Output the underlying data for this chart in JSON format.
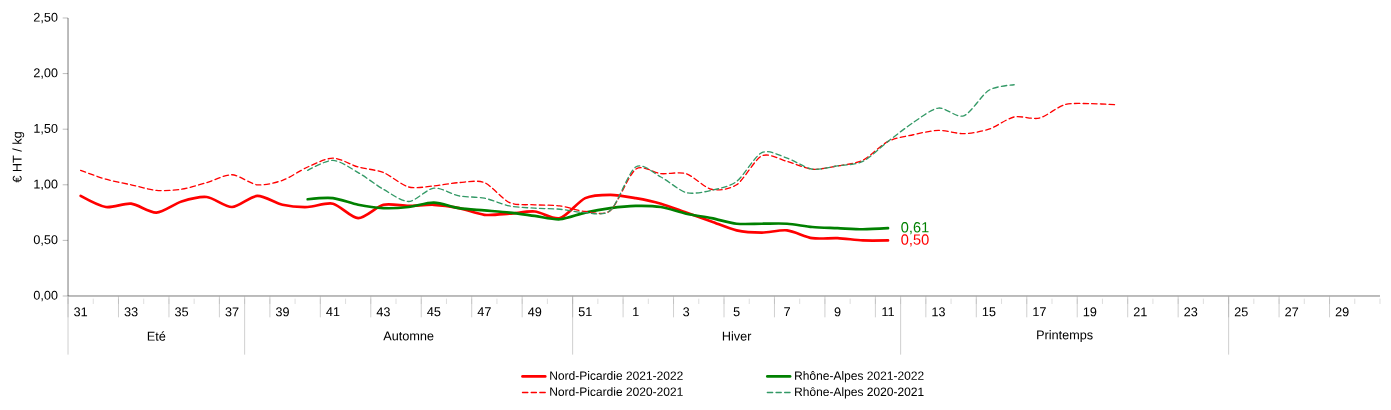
{
  "chart_data": {
    "type": "line",
    "ylabel": "€ HT / kg",
    "categories": [
      "31",
      null,
      "33",
      null,
      "35",
      null,
      "37",
      null,
      "39",
      null,
      "41",
      null,
      "43",
      null,
      "45",
      null,
      "47",
      null,
      "49",
      null,
      "51",
      null,
      "1",
      null,
      "3",
      null,
      "5",
      null,
      "7",
      null,
      "9",
      null,
      "11",
      null,
      "13",
      null,
      "15",
      null,
      "17",
      null,
      "19",
      null,
      "21",
      null,
      "23",
      null,
      "25",
      null,
      "27",
      null,
      "29",
      null
    ],
    "ylim": [
      0,
      2.5
    ],
    "yticks": [
      {
        "value": 0,
        "label": "0,00"
      },
      {
        "value": 0.5,
        "label": "0,50"
      },
      {
        "value": 1,
        "label": "1,00"
      },
      {
        "value": 1.5,
        "label": "1,50"
      },
      {
        "value": 2,
        "label": "2,00"
      },
      {
        "value": 2.5,
        "label": "2,50"
      }
    ],
    "annotations": [
      "Eté",
      "Automne",
      "Hiver",
      "Printemps"
    ],
    "legend": "bottom",
    "series": [
      {
        "name": "Nord-Picardie 2021-2022",
        "color": "#ff0000",
        "line_style": "solid",
        "values": [
          0.9,
          0.8,
          0.83,
          0.75,
          0.85,
          0.89,
          0.8,
          0.9,
          0.82,
          0.8,
          0.83,
          0.7,
          0.82,
          0.81,
          0.82,
          0.79,
          0.73,
          0.74,
          0.76,
          0.7,
          0.88,
          0.91,
          0.88,
          0.83,
          0.75,
          0.67,
          0.59,
          0.57,
          0.59,
          0.52,
          0.52,
          0.5,
          0.5,
          null,
          null,
          null,
          null,
          null,
          null,
          null,
          null,
          null,
          null,
          null,
          null,
          null,
          null,
          null,
          null,
          null,
          null,
          null
        ],
        "value_labels": [
          null,
          null,
          null,
          null,
          null,
          null,
          null,
          null,
          null,
          null,
          null,
          null,
          null,
          null,
          null,
          null,
          null,
          null,
          null,
          null,
          null,
          null,
          null,
          null,
          null,
          null,
          null,
          null,
          null,
          null,
          null,
          null,
          "0,50",
          null,
          null,
          null,
          null,
          null,
          null,
          null,
          null,
          null,
          null,
          null,
          null,
          null,
          null,
          null,
          null,
          null,
          null,
          null
        ]
      },
      {
        "name": "Rhône-Alpes 2021-2022",
        "color": "#008000",
        "line_style": "solid",
        "values": [
          null,
          null,
          null,
          null,
          null,
          null,
          null,
          null,
          null,
          0.87,
          0.88,
          0.82,
          0.79,
          0.8,
          0.84,
          0.79,
          0.77,
          0.75,
          0.72,
          0.69,
          0.75,
          0.79,
          0.81,
          0.8,
          0.74,
          0.7,
          0.65,
          0.65,
          0.65,
          0.62,
          0.61,
          0.6,
          0.61,
          null,
          null,
          null,
          null,
          null,
          null,
          null,
          null,
          null,
          null,
          null,
          null,
          null,
          null,
          null,
          null,
          null,
          null,
          null
        ],
        "value_labels": [
          null,
          null,
          null,
          null,
          null,
          null,
          null,
          null,
          null,
          null,
          null,
          null,
          null,
          null,
          null,
          null,
          null,
          null,
          null,
          null,
          null,
          null,
          null,
          null,
          null,
          null,
          null,
          null,
          null,
          null,
          null,
          null,
          "0,61",
          null,
          null,
          null,
          null,
          null,
          null,
          null,
          null,
          null,
          null,
          null,
          null,
          null,
          null,
          null,
          null,
          null,
          null,
          null
        ]
      },
      {
        "name": "Nord-Picardie 2020-2021",
        "color": "#ff0000",
        "line_style": "dashed",
        "values": [
          1.13,
          1.05,
          1.0,
          0.95,
          0.96,
          1.02,
          1.09,
          1.0,
          1.04,
          1.16,
          1.24,
          1.16,
          1.11,
          0.98,
          0.99,
          1.02,
          1.02,
          0.84,
          0.82,
          0.81,
          0.76,
          0.77,
          1.14,
          1.1,
          1.1,
          0.96,
          1.0,
          1.26,
          1.21,
          1.14,
          1.17,
          1.22,
          1.39,
          1.45,
          1.49,
          1.46,
          1.5,
          1.61,
          1.6,
          1.72,
          1.73,
          1.72,
          null,
          null,
          null,
          null,
          null,
          null,
          null,
          null,
          null,
          null
        ]
      },
      {
        "name": "Rhône-Alpes 2020-2021",
        "color": "#339966",
        "line_style": "dashed",
        "values": [
          null,
          null,
          null,
          null,
          null,
          null,
          null,
          null,
          null,
          1.13,
          1.22,
          1.11,
          0.96,
          0.85,
          0.97,
          0.9,
          0.88,
          0.81,
          0.79,
          0.78,
          0.75,
          0.77,
          1.16,
          1.07,
          0.93,
          0.95,
          1.03,
          1.29,
          1.24,
          1.14,
          1.17,
          1.21,
          1.39,
          1.56,
          1.69,
          1.62,
          1.85,
          1.9,
          null,
          null,
          null,
          null,
          null,
          null,
          null,
          null,
          null,
          null,
          null,
          null,
          null,
          null
        ]
      }
    ]
  }
}
